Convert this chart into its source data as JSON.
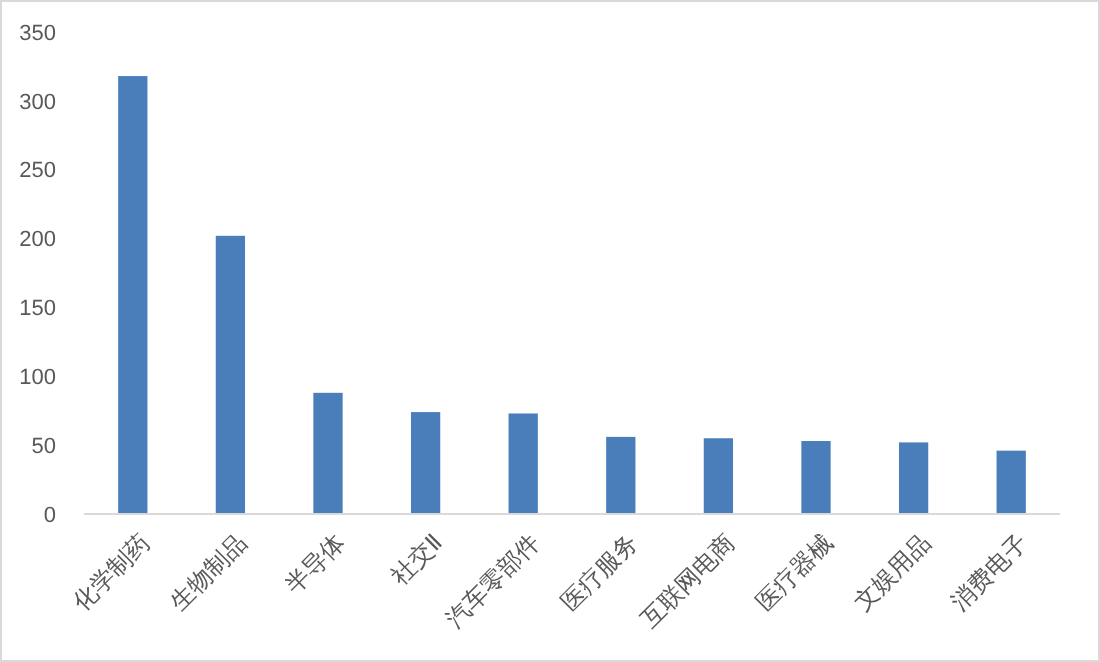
{
  "chart_data": {
    "type": "bar",
    "categories": [
      "化学制药",
      "生物制品",
      "半导体",
      "社交Ⅱ",
      "汽车零部件",
      "医疗服务",
      "互联网电商",
      "医疗器械",
      "文娱用品",
      "消费电子"
    ],
    "values": [
      318,
      202,
      88,
      74,
      73,
      56,
      55,
      53,
      52,
      46
    ],
    "color": "#4a7ebb",
    "ylim": [
      0,
      350
    ],
    "yticks": [
      0,
      50,
      100,
      150,
      200,
      250,
      300,
      350
    ],
    "grid": false
  }
}
